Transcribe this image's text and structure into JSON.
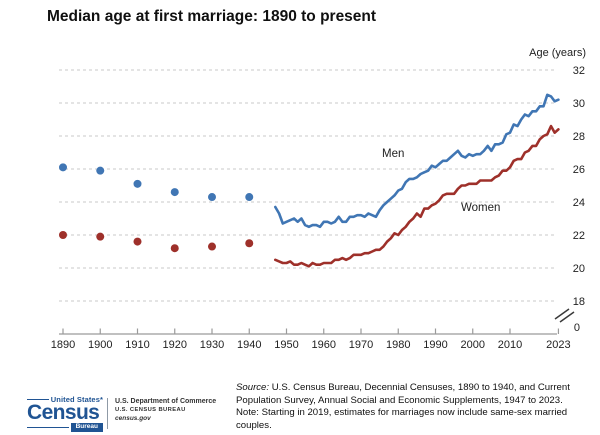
{
  "header": {
    "title": "Median age at first marriage: 1890 to present"
  },
  "chart_data": {
    "type": "line",
    "title": "Median age at first marriage: 1890 to present",
    "xlabel": "",
    "ylabel": "Age (years)",
    "y_axis_label": "Age (years)",
    "xlim": [
      1890,
      2023
    ],
    "ylim": [
      18,
      32
    ],
    "grid": "horizontal-dashed",
    "axis_break": true,
    "legend_position": "inline-annotations",
    "x_ticks": [
      1890,
      1900,
      1910,
      1920,
      1930,
      1940,
      1950,
      1960,
      1970,
      1980,
      1990,
      2000,
      2010,
      2023
    ],
    "y_ticks": [
      0,
      18,
      20,
      22,
      24,
      26,
      28,
      30,
      32
    ],
    "series": [
      {
        "name": "Men",
        "color": "#4076b4",
        "dots_years": [
          1890,
          1900,
          1910,
          1920,
          1930,
          1940
        ],
        "dots_values": [
          26.1,
          25.9,
          25.1,
          24.6,
          24.3,
          24.3
        ],
        "line_start_year": 1947,
        "line_values": [
          23.7,
          23.3,
          22.7,
          22.8,
          22.9,
          23.0,
          22.8,
          23.0,
          22.6,
          22.5,
          22.6,
          22.6,
          22.5,
          22.8,
          22.8,
          22.7,
          22.8,
          23.1,
          22.8,
          22.8,
          23.1,
          23.1,
          23.2,
          23.2,
          23.1,
          23.3,
          23.2,
          23.1,
          23.5,
          23.8,
          24.0,
          24.2,
          24.4,
          24.7,
          24.8,
          25.2,
          25.4,
          25.4,
          25.5,
          25.7,
          25.8,
          25.9,
          26.2,
          26.1,
          26.3,
          26.5,
          26.5,
          26.7,
          26.9,
          27.1,
          26.8,
          26.7,
          26.9,
          26.8,
          26.9,
          26.9,
          27.1,
          27.4,
          27.1,
          27.5,
          27.5,
          27.6,
          28.1,
          28.2,
          28.7,
          28.6,
          29.0,
          29.3,
          29.2,
          29.5,
          29.5,
          29.8,
          29.8,
          30.5,
          30.4,
          30.1,
          30.2
        ]
      },
      {
        "name": "Women",
        "color": "#9e302a",
        "dots_years": [
          1890,
          1900,
          1910,
          1920,
          1930,
          1940
        ],
        "dots_values": [
          22.0,
          21.9,
          21.6,
          21.2,
          21.3,
          21.5
        ],
        "line_start_year": 1947,
        "line_values": [
          20.5,
          20.4,
          20.3,
          20.3,
          20.4,
          20.2,
          20.2,
          20.3,
          20.2,
          20.1,
          20.3,
          20.2,
          20.2,
          20.3,
          20.3,
          20.3,
          20.5,
          20.5,
          20.6,
          20.5,
          20.6,
          20.8,
          20.8,
          20.8,
          20.9,
          20.9,
          21.0,
          21.1,
          21.1,
          21.3,
          21.6,
          21.8,
          22.1,
          22.0,
          22.3,
          22.5,
          22.8,
          23.0,
          23.3,
          23.1,
          23.6,
          23.6,
          23.8,
          23.9,
          24.1,
          24.4,
          24.5,
          24.5,
          24.5,
          24.8,
          25.0,
          25.0,
          25.1,
          25.1,
          25.1,
          25.3,
          25.3,
          25.3,
          25.3,
          25.5,
          25.6,
          25.9,
          25.9,
          26.1,
          26.5,
          26.6,
          26.6,
          27.0,
          27.1,
          27.4,
          27.4,
          27.8,
          28.0,
          28.1,
          28.6,
          28.2,
          28.4
        ]
      }
    ]
  },
  "footer": {
    "source_label": "Source:",
    "source_text": "U.S. Census Bureau, Decennial Censuses, 1890 to 1940, and Current Population Survey, Annual Social and Economic Supplements, 1947 to 2023.",
    "note_text": "Note: Starting in 2019, estimates for marriages now include same-sex married couples."
  },
  "logo": {
    "united_states": "United States*",
    "census": "Census",
    "bureau_bar": "Bureau",
    "dept": "U.S. Department of Commerce",
    "bureau_caps": "U.S. CENSUS BUREAU",
    "site": "census.gov"
  }
}
